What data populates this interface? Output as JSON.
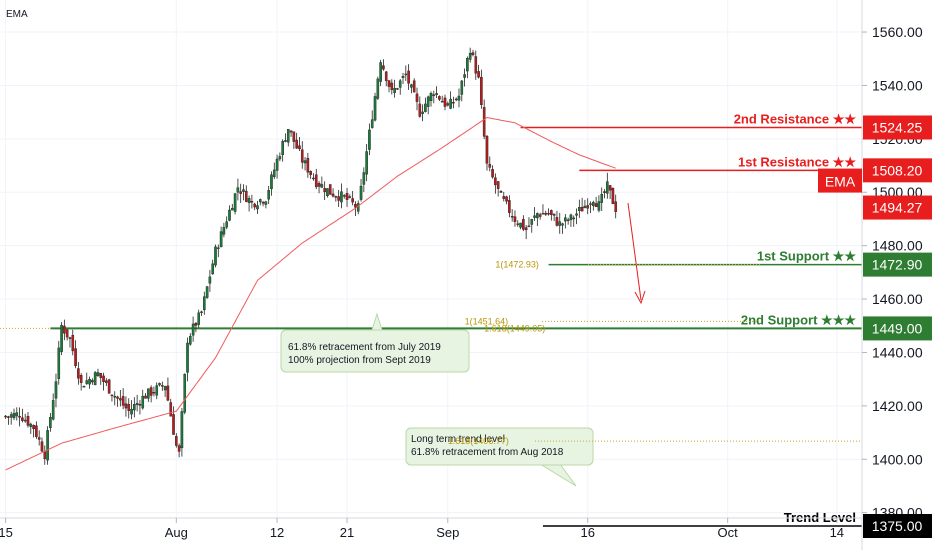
{
  "indicator": "EMA",
  "chart_data": {
    "type": "candlestick",
    "instrument_hint": "EMA",
    "ylim": [
      1378,
      1572
    ],
    "y_ticks": [
      1380,
      1400,
      1420,
      1440,
      1460,
      1480,
      1500,
      1520,
      1540,
      1560
    ],
    "y_tick_labels": [
      "1380.00",
      "1400.00",
      "1420.00",
      "1440.00",
      "1460.00",
      "1480.00",
      "1500.00",
      "1520.00",
      "1540.00",
      "1560.00"
    ],
    "x_ticks": [
      {
        "label": "15",
        "index": 0
      },
      {
        "label": "Aug",
        "index": 61
      },
      {
        "label": "12",
        "index": 97
      },
      {
        "label": "21",
        "index": 122
      },
      {
        "label": "Sep",
        "index": 158
      },
      {
        "label": "16",
        "index": 208
      },
      {
        "label": "Oct",
        "index": 258
      },
      {
        "label": "14",
        "index": 297
      }
    ],
    "x_range": [
      -2,
      306
    ],
    "close_anchors": [
      [
        0,
        1416
      ],
      [
        5,
        1417
      ],
      [
        10,
        1412
      ],
      [
        14,
        1402
      ],
      [
        18,
        1430
      ],
      [
        20,
        1450
      ],
      [
        23,
        1445
      ],
      [
        27,
        1428
      ],
      [
        33,
        1432
      ],
      [
        38,
        1425
      ],
      [
        44,
        1418
      ],
      [
        50,
        1424
      ],
      [
        57,
        1428
      ],
      [
        61,
        1405
      ],
      [
        62,
        1402
      ],
      [
        65,
        1445
      ],
      [
        70,
        1455
      ],
      [
        75,
        1478
      ],
      [
        79,
        1490
      ],
      [
        83,
        1502
      ],
      [
        88,
        1496
      ],
      [
        93,
        1498
      ],
      [
        97,
        1512
      ],
      [
        101,
        1524
      ],
      [
        106,
        1512
      ],
      [
        111,
        1504
      ],
      [
        116,
        1500
      ],
      [
        121,
        1498
      ],
      [
        126,
        1494
      ],
      [
        130,
        1522
      ],
      [
        134,
        1550
      ],
      [
        138,
        1537
      ],
      [
        143,
        1544
      ],
      [
        148,
        1530
      ],
      [
        153,
        1538
      ],
      [
        158,
        1532
      ],
      [
        162,
        1536
      ],
      [
        166,
        1554
      ],
      [
        169,
        1542
      ],
      [
        172,
        1510
      ],
      [
        177,
        1498
      ],
      [
        182,
        1490
      ],
      [
        186,
        1486
      ],
      [
        190,
        1492
      ],
      [
        194,
        1492
      ],
      [
        198,
        1488
      ],
      [
        202,
        1490
      ],
      [
        206,
        1494
      ],
      [
        210,
        1498
      ],
      [
        212,
        1495
      ],
      [
        215,
        1502
      ],
      [
        218,
        1494
      ]
    ],
    "ema_anchors": [
      [
        0,
        1396
      ],
      [
        20,
        1406
      ],
      [
        40,
        1412
      ],
      [
        61,
        1418
      ],
      [
        75,
        1438
      ],
      [
        90,
        1467
      ],
      [
        106,
        1481
      ],
      [
        125,
        1494
      ],
      [
        140,
        1506
      ],
      [
        155,
        1516
      ],
      [
        165,
        1523
      ],
      [
        172,
        1528
      ],
      [
        182,
        1526
      ],
      [
        195,
        1519
      ],
      [
        205,
        1514
      ],
      [
        218,
        1509
      ]
    ],
    "levels": [
      {
        "name": "2nd Resistance ★★",
        "value": 1524.25,
        "tag": "1524.25",
        "color": "#e81e1e",
        "from_index": 184
      },
      {
        "name": "1st Resistance ★★",
        "value": 1508.2,
        "tag": "1508.20",
        "color": "#e81e1e",
        "from_index": 205
      },
      {
        "name": "1st Support ★★",
        "value": 1472.9,
        "tag": "1472.90",
        "color": "#2e7d32",
        "from_index": 194
      },
      {
        "name": "2nd Support ★★★",
        "value": 1449.0,
        "tag": "1449.00",
        "color": "#2e7d32",
        "from_index": 16
      },
      {
        "name": "Trend Level",
        "value": 1375.0,
        "tag": "1375.00",
        "color": "#000000",
        "from_index": 192
      }
    ],
    "current_price": {
      "tag": "1494.27",
      "value": 1494.27,
      "color": "#e81e1e"
    },
    "ema_tag": {
      "label": "EMA",
      "color": "#e81e1e"
    },
    "fib_labels": [
      {
        "text": "1(1472.93)",
        "value": 1472.93,
        "x_index": 175
      },
      {
        "text": "1(1451.64)",
        "value": 1451.64,
        "x_index": 164
      },
      {
        "text": "1.618(1449.05)",
        "value": 1449.05,
        "x_index": 171
      },
      {
        "text": "1.618(1406.77)",
        "value": 1406.77,
        "x_index": 158
      }
    ],
    "annotations": [
      {
        "lines": [
          "61.8% retracement from July 2019",
          "100% projection from Sept 2019"
        ]
      },
      {
        "lines": [
          "Long term trend level",
          "61.8% retracement from Aug 2018"
        ]
      }
    ]
  }
}
